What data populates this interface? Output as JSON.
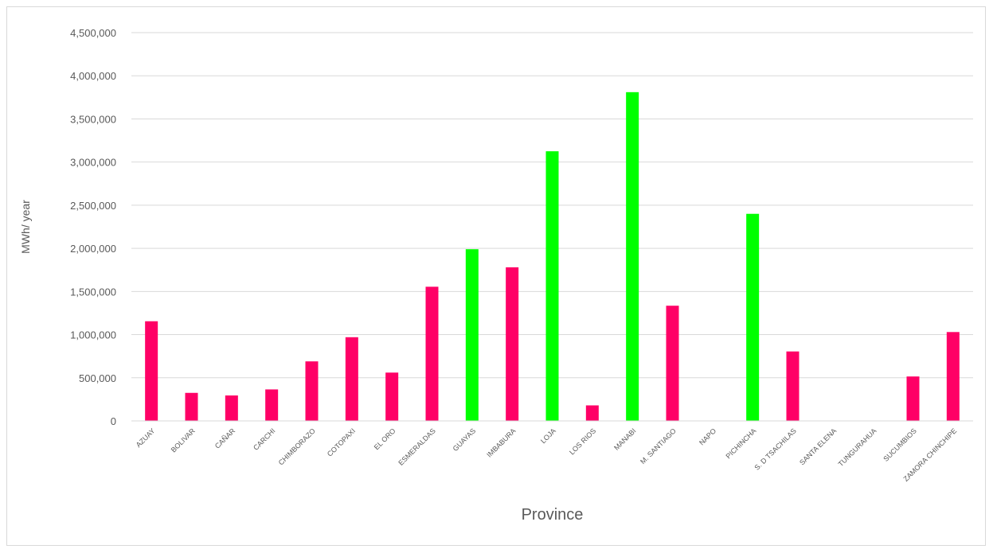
{
  "chart_data": {
    "type": "bar",
    "xlabel": "Province",
    "ylabel": "MWh/ year",
    "ylim": [
      0,
      4500000
    ],
    "yticks": [
      0,
      500000,
      1000000,
      1500000,
      2000000,
      2500000,
      3000000,
      3500000,
      4000000,
      4500000
    ],
    "ytick_labels": [
      "0",
      "500,000",
      "1,000,000",
      "1,500,000",
      "2,000,000",
      "2,500,000",
      "3,000,000",
      "3,500,000",
      "4,000,000",
      "4,500,000"
    ],
    "grid": true,
    "legend": "none",
    "categories": [
      "AZUAY",
      "BOLIVAR",
      "CAÑAR",
      "CARCHI",
      "CHIMBORAZO",
      "COTOPAXI",
      "EL ORO",
      "ESMERALDAS",
      "GUAYAS",
      "IMBABURA",
      "LOJA",
      "LOS RIOS",
      "MANABI",
      "M. SANTIAGO",
      "NAPO",
      "PICHINCHA",
      "S. D TSACHILAS",
      "SANTA ELENA",
      "TUNGURAHUA",
      "SUCUMBIOS",
      "ZAMORA CHINCHIPE"
    ],
    "values": [
      1155000,
      325000,
      295000,
      365000,
      690000,
      970000,
      560000,
      1555000,
      1990000,
      1780000,
      3125000,
      180000,
      3810000,
      1335000,
      0,
      2400000,
      805000,
      0,
      0,
      515000,
      1030000
    ],
    "bar_colors": [
      "#ff0066",
      "#ff0066",
      "#ff0066",
      "#ff0066",
      "#ff0066",
      "#ff0066",
      "#ff0066",
      "#ff0066",
      "#00ff00",
      "#ff0066",
      "#00ff00",
      "#ff0066",
      "#00ff00",
      "#ff0066",
      "#ff0066",
      "#00ff00",
      "#ff0066",
      "#ff0066",
      "#ff0066",
      "#ff0066",
      "#ff0066"
    ]
  }
}
